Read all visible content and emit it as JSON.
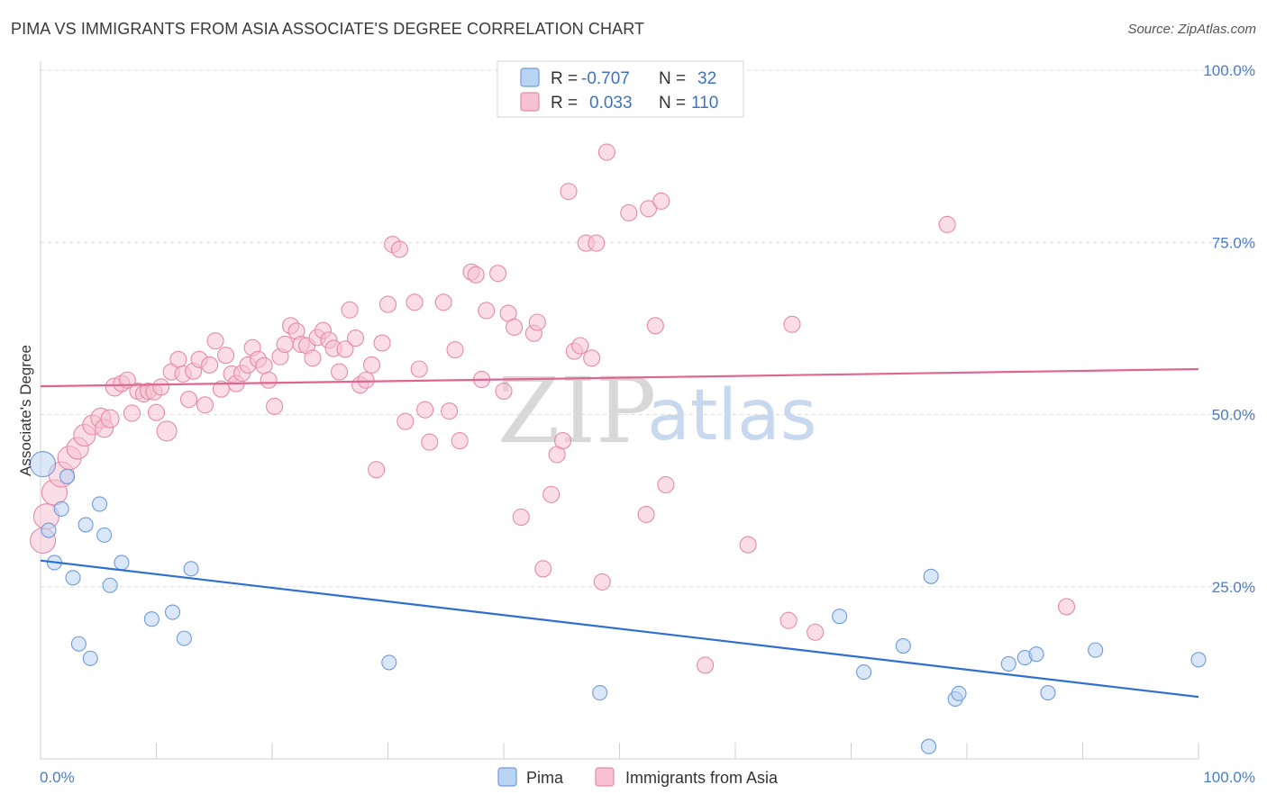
{
  "header": {
    "title": "PIMA VS IMMIGRANTS FROM ASIA ASSOCIATE'S DEGREE CORRELATION CHART",
    "source": "Source: ZipAtlas.com"
  },
  "legend_top": {
    "row1": {
      "r_label": "R =",
      "r_value": "-0.707",
      "n_label": "N =",
      "n_value": "32"
    },
    "row2": {
      "r_label": "R =",
      "r_value": "0.033",
      "n_label": "N =",
      "n_value": "110"
    }
  },
  "legend_bottom": {
    "series1": "Pima",
    "series2": "Immigrants from Asia"
  },
  "watermark": {
    "zip": "ZIP",
    "atlas": "atlas"
  },
  "colors": {
    "pima_fill": "#b9d3f3",
    "pima_stroke": "#6d9bd8",
    "pima_line": "#2f6fd0",
    "asia_fill": "#f6c1d2",
    "asia_stroke": "#e68aa8",
    "asia_line": "#e06590",
    "tick_label": "#4a7cc9",
    "grid": "#dcdcdc"
  },
  "chart_data": {
    "type": "scatter",
    "title": "PIMA VS IMMIGRANTS FROM ASIA ASSOCIATE'S DEGREE CORRELATION CHART",
    "xlabel": "",
    "ylabel": "Associate's Degree",
    "xlim": [
      0,
      100
    ],
    "ylim": [
      0,
      100
    ],
    "x_tick_labels": [
      "0.0%",
      "100.0%"
    ],
    "y_tick_labels": [
      "25.0%",
      "50.0%",
      "75.0%",
      "100.0%"
    ],
    "y_ticks": [
      25,
      50,
      75,
      100
    ],
    "grid": "horizontal dashed",
    "legend_position": "top-center",
    "series": [
      {
        "name": "Pima",
        "r": -0.707,
        "n": 32,
        "trend": {
          "x": [
            0,
            100
          ],
          "y": [
            28.8,
            9.0
          ]
        },
        "points": [
          {
            "x": 0.2,
            "y": 42.8,
            "s": 14
          },
          {
            "x": 0.7,
            "y": 33.2,
            "s": 8
          },
          {
            "x": 1.2,
            "y": 28.5,
            "s": 8
          },
          {
            "x": 1.8,
            "y": 36.3,
            "s": 8
          },
          {
            "x": 2.3,
            "y": 41.0,
            "s": 8
          },
          {
            "x": 2.8,
            "y": 26.3,
            "s": 8
          },
          {
            "x": 3.3,
            "y": 16.7,
            "s": 8
          },
          {
            "x": 3.9,
            "y": 34.0,
            "s": 8
          },
          {
            "x": 4.3,
            "y": 14.6,
            "s": 8
          },
          {
            "x": 5.1,
            "y": 37.0,
            "s": 8
          },
          {
            "x": 5.5,
            "y": 32.5,
            "s": 8
          },
          {
            "x": 6.0,
            "y": 25.2,
            "s": 8
          },
          {
            "x": 7.0,
            "y": 28.5,
            "s": 8
          },
          {
            "x": 9.6,
            "y": 20.3,
            "s": 8
          },
          {
            "x": 11.4,
            "y": 21.3,
            "s": 8
          },
          {
            "x": 12.4,
            "y": 17.5,
            "s": 8
          },
          {
            "x": 13.0,
            "y": 27.6,
            "s": 8
          },
          {
            "x": 30.1,
            "y": 14.0,
            "s": 8
          },
          {
            "x": 48.3,
            "y": 9.6,
            "s": 8
          },
          {
            "x": 69.0,
            "y": 20.7,
            "s": 8
          },
          {
            "x": 71.1,
            "y": 12.6,
            "s": 8
          },
          {
            "x": 74.5,
            "y": 16.4,
            "s": 8
          },
          {
            "x": 76.7,
            "y": 1.8,
            "s": 8
          },
          {
            "x": 76.9,
            "y": 26.5,
            "s": 8
          },
          {
            "x": 79.0,
            "y": 8.7,
            "s": 8
          },
          {
            "x": 79.3,
            "y": 9.5,
            "s": 8
          },
          {
            "x": 83.6,
            "y": 13.8,
            "s": 8
          },
          {
            "x": 85.0,
            "y": 14.7,
            "s": 8
          },
          {
            "x": 86.0,
            "y": 15.2,
            "s": 8
          },
          {
            "x": 87.0,
            "y": 9.6,
            "s": 8
          },
          {
            "x": 91.1,
            "y": 15.8,
            "s": 8
          },
          {
            "x": 100.0,
            "y": 14.4,
            "s": 8
          }
        ]
      },
      {
        "name": "Immigrants from Asia",
        "r": 0.033,
        "n": 110,
        "trend": {
          "x": [
            0,
            100
          ],
          "y": [
            54.1,
            56.6
          ]
        },
        "points": [
          {
            "x": 0.2,
            "y": 31.7,
            "s": 14
          },
          {
            "x": 0.5,
            "y": 35.2,
            "s": 14
          },
          {
            "x": 1.2,
            "y": 38.7,
            "s": 14
          },
          {
            "x": 1.8,
            "y": 41.3,
            "s": 14
          },
          {
            "x": 2.5,
            "y": 43.7,
            "s": 13
          },
          {
            "x": 3.2,
            "y": 45.1,
            "s": 12
          },
          {
            "x": 3.8,
            "y": 47.0,
            "s": 12
          },
          {
            "x": 4.5,
            "y": 48.5,
            "s": 11
          },
          {
            "x": 5.2,
            "y": 49.5,
            "s": 11
          },
          {
            "x": 5.5,
            "y": 48.0,
            "s": 10
          },
          {
            "x": 6.0,
            "y": 49.4,
            "s": 10
          },
          {
            "x": 6.4,
            "y": 54.0,
            "s": 10
          },
          {
            "x": 7.0,
            "y": 54.5,
            "s": 9
          },
          {
            "x": 7.5,
            "y": 55.0,
            "s": 9
          },
          {
            "x": 7.9,
            "y": 50.2,
            "s": 9
          },
          {
            "x": 8.4,
            "y": 53.4,
            "s": 9
          },
          {
            "x": 8.9,
            "y": 53.0,
            "s": 9
          },
          {
            "x": 9.3,
            "y": 53.4,
            "s": 9
          },
          {
            "x": 9.8,
            "y": 53.3,
            "s": 9
          },
          {
            "x": 10.0,
            "y": 50.3,
            "s": 9
          },
          {
            "x": 10.4,
            "y": 54.0,
            "s": 9
          },
          {
            "x": 10.9,
            "y": 47.6,
            "s": 11
          },
          {
            "x": 11.3,
            "y": 56.2,
            "s": 9
          },
          {
            "x": 11.9,
            "y": 58.0,
            "s": 9
          },
          {
            "x": 12.3,
            "y": 55.9,
            "s": 9
          },
          {
            "x": 12.8,
            "y": 52.2,
            "s": 9
          },
          {
            "x": 13.2,
            "y": 56.3,
            "s": 9
          },
          {
            "x": 13.7,
            "y": 58.0,
            "s": 9
          },
          {
            "x": 14.2,
            "y": 51.4,
            "s": 9
          },
          {
            "x": 14.6,
            "y": 57.2,
            "s": 9
          },
          {
            "x": 15.1,
            "y": 60.7,
            "s": 9
          },
          {
            "x": 15.6,
            "y": 53.7,
            "s": 9
          },
          {
            "x": 16.0,
            "y": 58.6,
            "s": 9
          },
          {
            "x": 16.5,
            "y": 55.9,
            "s": 9
          },
          {
            "x": 16.9,
            "y": 54.5,
            "s": 9
          },
          {
            "x": 17.4,
            "y": 56.0,
            "s": 9
          },
          {
            "x": 17.9,
            "y": 57.2,
            "s": 9
          },
          {
            "x": 18.3,
            "y": 59.7,
            "s": 9
          },
          {
            "x": 18.8,
            "y": 58.0,
            "s": 9
          },
          {
            "x": 19.3,
            "y": 57.1,
            "s": 9
          },
          {
            "x": 19.7,
            "y": 55.0,
            "s": 9
          },
          {
            "x": 20.2,
            "y": 51.2,
            "s": 9
          },
          {
            "x": 20.7,
            "y": 58.4,
            "s": 9
          },
          {
            "x": 21.1,
            "y": 60.2,
            "s": 9
          },
          {
            "x": 21.6,
            "y": 62.9,
            "s": 9
          },
          {
            "x": 22.1,
            "y": 62.1,
            "s": 9
          },
          {
            "x": 22.5,
            "y": 60.2,
            "s": 9
          },
          {
            "x": 23.0,
            "y": 60.0,
            "s": 9
          },
          {
            "x": 23.5,
            "y": 58.2,
            "s": 9
          },
          {
            "x": 23.9,
            "y": 61.2,
            "s": 9
          },
          {
            "x": 24.4,
            "y": 62.2,
            "s": 9
          },
          {
            "x": 24.9,
            "y": 60.8,
            "s": 9
          },
          {
            "x": 25.3,
            "y": 59.6,
            "s": 9
          },
          {
            "x": 25.8,
            "y": 56.2,
            "s": 9
          },
          {
            "x": 26.3,
            "y": 59.5,
            "s": 9
          },
          {
            "x": 26.7,
            "y": 65.2,
            "s": 9
          },
          {
            "x": 27.2,
            "y": 61.1,
            "s": 9
          },
          {
            "x": 27.6,
            "y": 54.3,
            "s": 9
          },
          {
            "x": 28.1,
            "y": 55.0,
            "s": 9
          },
          {
            "x": 28.6,
            "y": 57.2,
            "s": 9
          },
          {
            "x": 29.0,
            "y": 42.0,
            "s": 9
          },
          {
            "x": 29.5,
            "y": 60.4,
            "s": 9
          },
          {
            "x": 30.0,
            "y": 66.0,
            "s": 9
          },
          {
            "x": 30.4,
            "y": 74.7,
            "s": 9
          },
          {
            "x": 31.0,
            "y": 74.0,
            "s": 9
          },
          {
            "x": 31.5,
            "y": 49.0,
            "s": 9
          },
          {
            "x": 32.3,
            "y": 66.3,
            "s": 9
          },
          {
            "x": 32.7,
            "y": 56.6,
            "s": 9
          },
          {
            "x": 33.2,
            "y": 50.7,
            "s": 9
          },
          {
            "x": 33.6,
            "y": 46.0,
            "s": 9
          },
          {
            "x": 34.8,
            "y": 66.3,
            "s": 9
          },
          {
            "x": 35.3,
            "y": 50.5,
            "s": 9
          },
          {
            "x": 35.8,
            "y": 59.4,
            "s": 9
          },
          {
            "x": 36.2,
            "y": 46.2,
            "s": 9
          },
          {
            "x": 37.2,
            "y": 70.7,
            "s": 9
          },
          {
            "x": 37.6,
            "y": 70.3,
            "s": 9
          },
          {
            "x": 38.1,
            "y": 55.1,
            "s": 9
          },
          {
            "x": 38.5,
            "y": 65.1,
            "s": 9
          },
          {
            "x": 39.5,
            "y": 70.5,
            "s": 9
          },
          {
            "x": 40.0,
            "y": 53.4,
            "s": 9
          },
          {
            "x": 40.4,
            "y": 64.7,
            "s": 9
          },
          {
            "x": 40.9,
            "y": 62.7,
            "s": 9
          },
          {
            "x": 41.5,
            "y": 35.1,
            "s": 9
          },
          {
            "x": 42.6,
            "y": 61.8,
            "s": 9
          },
          {
            "x": 42.9,
            "y": 63.4,
            "s": 9
          },
          {
            "x": 43.4,
            "y": 27.6,
            "s": 9
          },
          {
            "x": 44.1,
            "y": 38.4,
            "s": 9
          },
          {
            "x": 44.6,
            "y": 44.2,
            "s": 9
          },
          {
            "x": 45.1,
            "y": 46.2,
            "s": 9
          },
          {
            "x": 45.6,
            "y": 82.4,
            "s": 9
          },
          {
            "x": 46.1,
            "y": 59.2,
            "s": 9
          },
          {
            "x": 46.6,
            "y": 60.0,
            "s": 9
          },
          {
            "x": 47.1,
            "y": 74.9,
            "s": 9
          },
          {
            "x": 47.6,
            "y": 58.2,
            "s": 9
          },
          {
            "x": 48.0,
            "y": 74.9,
            "s": 9
          },
          {
            "x": 48.5,
            "y": 25.7,
            "s": 9
          },
          {
            "x": 48.9,
            "y": 88.1,
            "s": 9
          },
          {
            "x": 50.8,
            "y": 79.3,
            "s": 9
          },
          {
            "x": 52.3,
            "y": 35.5,
            "s": 9
          },
          {
            "x": 52.5,
            "y": 79.9,
            "s": 9
          },
          {
            "x": 53.1,
            "y": 62.9,
            "s": 9
          },
          {
            "x": 53.6,
            "y": 81.0,
            "s": 9
          },
          {
            "x": 54.0,
            "y": 39.8,
            "s": 9
          },
          {
            "x": 57.4,
            "y": 13.6,
            "s": 9
          },
          {
            "x": 61.1,
            "y": 31.1,
            "s": 9
          },
          {
            "x": 64.6,
            "y": 20.1,
            "s": 9
          },
          {
            "x": 64.9,
            "y": 63.1,
            "s": 9
          },
          {
            "x": 66.9,
            "y": 18.4,
            "s": 9
          },
          {
            "x": 78.3,
            "y": 77.6,
            "s": 9
          },
          {
            "x": 88.6,
            "y": 22.1,
            "s": 9
          }
        ]
      }
    ]
  }
}
